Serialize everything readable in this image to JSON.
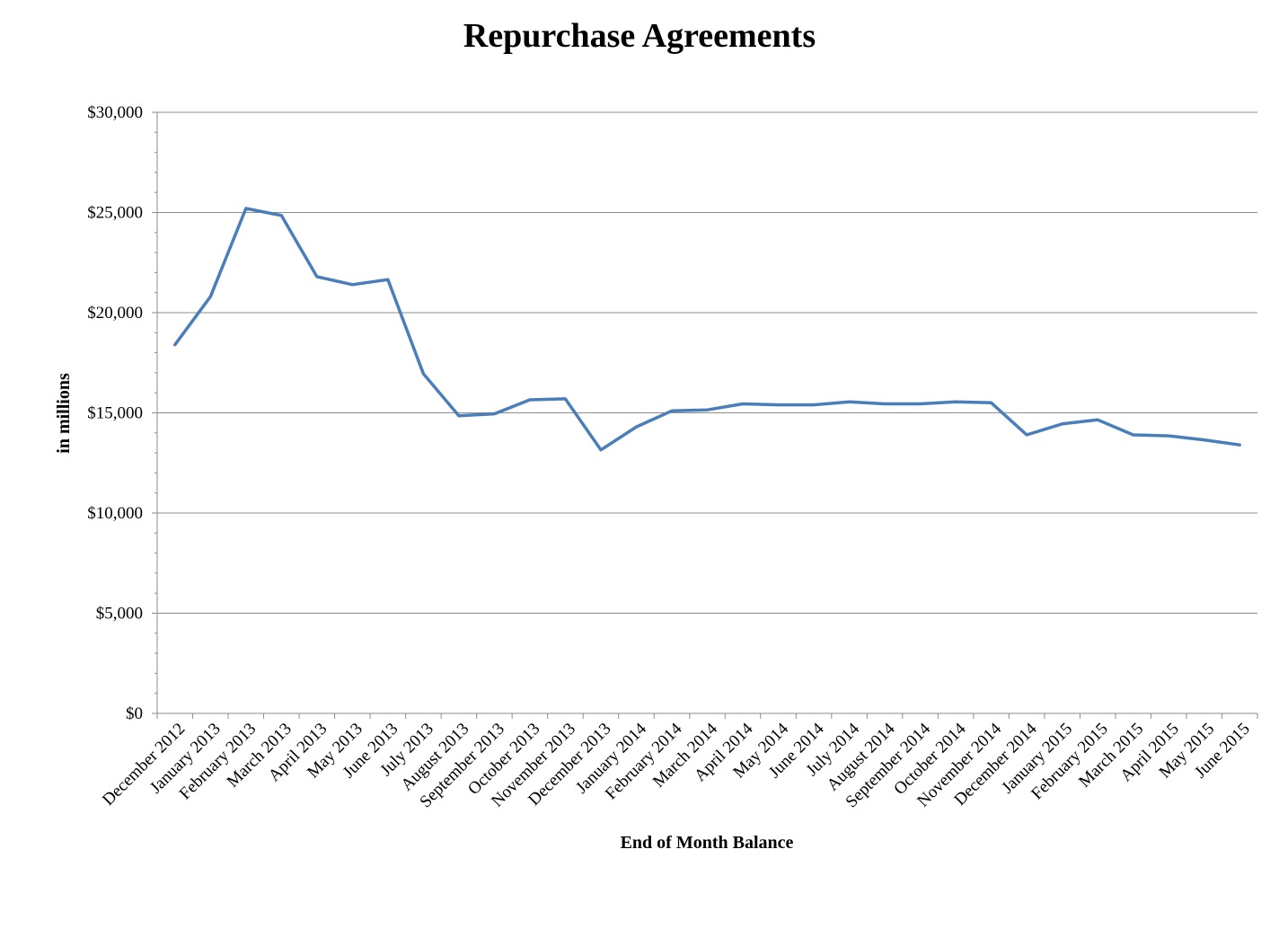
{
  "chart_data": {
    "type": "line",
    "title": "Repurchase Agreements",
    "xlabel": "End of Month Balance",
    "ylabel": "in millions",
    "ylim": [
      0,
      30000
    ],
    "y_ticks": [
      "$0",
      "$5,000",
      "$10,000",
      "$15,000",
      "$20,000",
      "$25,000",
      "$30,000"
    ],
    "grid": true,
    "legend": "none",
    "categories": [
      "December 2012",
      "January 2013",
      "February 2013",
      "March 2013",
      "April 2013",
      "May 2013",
      "June 2013",
      "July 2013",
      "August 2013",
      "September 2013",
      "October 2013",
      "November 2013",
      "December 2013",
      "January 2014",
      "February 2014",
      "March 2014",
      "April 2014",
      "May 2014",
      "June 2014",
      "July 2014",
      "August 2014",
      "September 2014",
      "October 2014",
      "November 2014",
      "December 2014",
      "January 2015",
      "February 2015",
      "March 2015",
      "April 2015",
      "May 2015",
      "June 2015"
    ],
    "series": [
      {
        "color": "#4a7ebb",
        "values": [
          18400,
          20800,
          25200,
          24850,
          21800,
          21400,
          21650,
          16950,
          14850,
          14950,
          15650,
          15700,
          13150,
          14300,
          15100,
          15150,
          15450,
          15400,
          15400,
          15550,
          15450,
          15450,
          15550,
          15500,
          13900,
          14450,
          14650,
          13900,
          13850,
          13650,
          13400
        ]
      }
    ]
  }
}
